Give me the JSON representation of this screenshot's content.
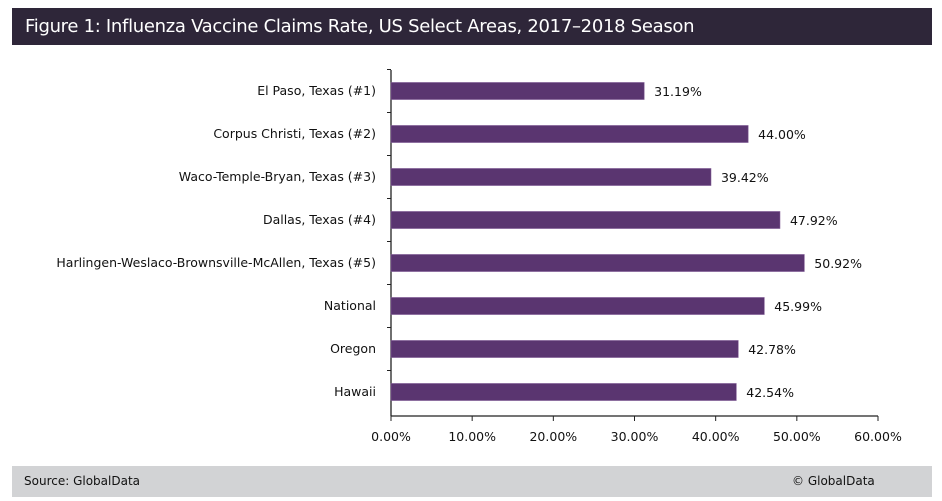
{
  "title": "Figure 1: Influenza Vaccine Claims Rate, US Select Areas, 2017–2018 Season",
  "footer": {
    "source": "Source: GlobalData",
    "copyright": "© GlobalData"
  },
  "colors": {
    "bar": "#5a3570",
    "title_bg": "#2e2639",
    "footer_bg": "#d2d3d5"
  },
  "chart_data": {
    "type": "bar",
    "orientation": "horizontal",
    "categories": [
      "El Paso, Texas (#1)",
      "Corpus Christi, Texas (#2)",
      "Waco-Temple-Bryan, Texas (#3)",
      "Dallas, Texas (#4)",
      "Harlingen-Weslaco-Brownsville-McAllen, Texas (#5)",
      "National",
      "Oregon",
      "Hawaii"
    ],
    "values": [
      31.19,
      44.0,
      39.42,
      47.92,
      50.92,
      45.99,
      42.78,
      42.54
    ],
    "data_labels": [
      "31.19%",
      "44.00%",
      "39.42%",
      "47.92%",
      "50.92%",
      "45.99%",
      "42.78%",
      "42.54%"
    ],
    "xlim": [
      0,
      60
    ],
    "ticks": [
      0,
      10,
      20,
      30,
      40,
      50,
      60
    ],
    "tick_labels": [
      "0.00%",
      "10.00%",
      "20.00%",
      "30.00%",
      "40.00%",
      "50.00%",
      "60.00%"
    ],
    "xlabel": "",
    "ylabel": "",
    "grid": false,
    "legend": "none"
  }
}
